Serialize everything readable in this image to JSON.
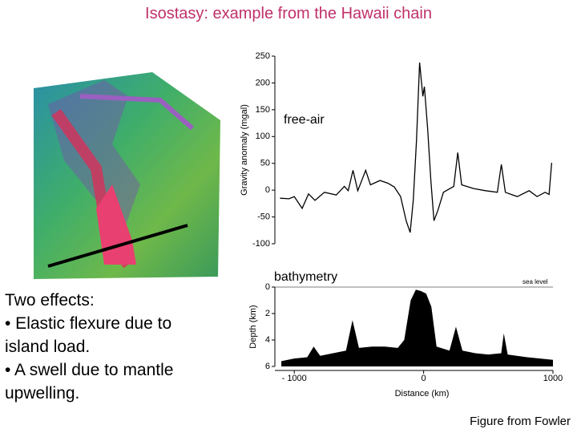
{
  "title": "Isostasy: example from the Hawaii chain",
  "intro": "Two effects:",
  "bullets": [
    "• Elastic flexure due to island load.",
    "• A swell due to mantle upwelling."
  ],
  "credit": "Figure from Fowler",
  "chart_data": [
    {
      "type": "line",
      "annotation": "free-air",
      "ylabel": "Gravity anomaly (mgal)",
      "color": "#000000",
      "xlim": [
        -1150,
        1000
      ],
      "ylim": [
        -100,
        250
      ],
      "yticks": [
        -100,
        -50,
        0,
        50,
        100,
        150,
        200,
        250
      ],
      "x": [
        -1110,
        -1040,
        -1000,
        -939,
        -890,
        -840,
        -767,
        -675,
        -613,
        -583,
        -546,
        -509,
        -448,
        -411,
        -337,
        -276,
        -227,
        -178,
        -135,
        -104,
        -80,
        -55,
        -31,
        -6,
        6,
        31,
        56,
        80,
        110,
        153,
        233,
        264,
        294,
        386,
        478,
        570,
        601,
        632,
        724,
        816,
        877,
        939,
        970,
        990
      ],
      "values": [
        -15,
        -16,
        -12,
        -34,
        -7,
        -19,
        -4,
        -9,
        7,
        -1,
        37,
        -1,
        37,
        10,
        18,
        13,
        6,
        -12,
        -57,
        -79,
        -19,
        93,
        238,
        175,
        193,
        115,
        18,
        -57,
        -38,
        -4,
        7,
        70,
        10,
        3,
        -1,
        -4,
        48,
        -4,
        -12,
        -1,
        -12,
        -4,
        -8,
        51
      ]
    },
    {
      "type": "area",
      "annotation": "bathymetry",
      "sea_level": "sea level",
      "ylabel": "Depth (km)",
      "xlabel": "Distance (km)",
      "color": "#000000",
      "xlim": [
        -1150,
        1000
      ],
      "ylim": [
        6,
        0
      ],
      "yticks": [
        0,
        2,
        4,
        6
      ],
      "xticks": [
        {
          "value": -1000,
          "label": "- 1000"
        },
        0,
        1000
      ],
      "x": [
        -1100,
        -1000,
        -900,
        -850,
        -800,
        -700,
        -600,
        -550,
        -500,
        -400,
        -300,
        -200,
        -150,
        -100,
        -60,
        -20,
        20,
        60,
        100,
        200,
        250,
        300,
        400,
        500,
        600,
        620,
        650,
        800,
        900,
        1000
      ],
      "values": [
        5.6,
        5.4,
        5.3,
        4.5,
        5.2,
        5.0,
        4.8,
        2.5,
        4.6,
        4.5,
        4.5,
        4.6,
        4.0,
        1.0,
        0.2,
        0.3,
        0.5,
        1.5,
        4.5,
        4.8,
        3.0,
        4.8,
        5.0,
        5.1,
        5.0,
        3.5,
        5.1,
        5.3,
        5.4,
        5.5
      ]
    }
  ]
}
